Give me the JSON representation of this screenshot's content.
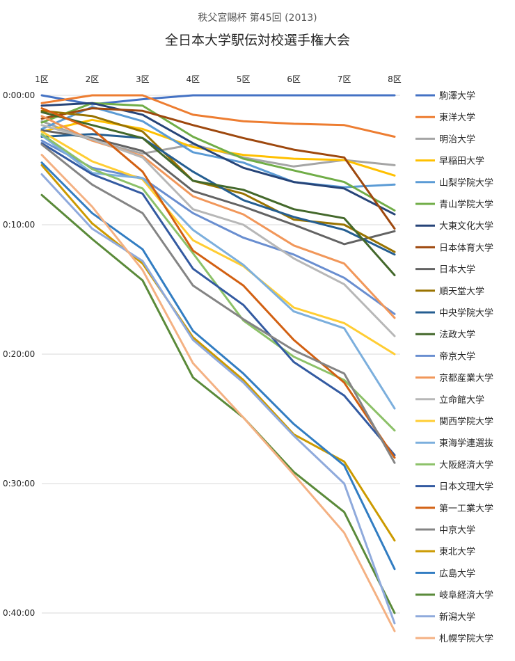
{
  "chart_data": {
    "type": "line",
    "subtitle": "秩父宮賜杯 第45回 (2013)",
    "title": "全日本大学駅伝対校選手権大会",
    "x": [
      "1区",
      "2区",
      "3区",
      "4区",
      "5区",
      "6区",
      "7区",
      "8区"
    ],
    "y_ticks": [
      "0:00:00",
      "0:10:00",
      "0:20:00",
      "0:30:00",
      "0:40:00"
    ],
    "ylim_minutes": [
      0,
      41.5
    ],
    "y_reversed": true,
    "grid": true,
    "legend_position": "right",
    "series": [
      {
        "name": "駒澤大学",
        "color": "#4472C4",
        "values": [
          0,
          0.7,
          0.3,
          0,
          0,
          0,
          0,
          0
        ]
      },
      {
        "name": "東洋大学",
        "color": "#ED7D31",
        "values": [
          0.6,
          0,
          0,
          1.5,
          2.0,
          2.2,
          2.3,
          3.2
        ]
      },
      {
        "name": "明治大学",
        "color": "#A5A5A5",
        "values": [
          2.0,
          3.5,
          4.5,
          3.8,
          4.8,
          5.5,
          5.0,
          5.4
        ]
      },
      {
        "name": "早稲田大学",
        "color": "#FFC000",
        "values": [
          2.8,
          1.9,
          2.6,
          4.0,
          4.6,
          4.9,
          5.0,
          6.2
        ]
      },
      {
        "name": "山梨学院大学",
        "color": "#5B9BD5",
        "values": [
          2.6,
          0.9,
          2.0,
          4.4,
          5.2,
          6.7,
          7.1,
          6.9
        ]
      },
      {
        "name": "青山学院大学",
        "color": "#70AD47",
        "values": [
          2.1,
          0.6,
          0.8,
          3.2,
          4.9,
          5.8,
          6.7,
          8.9
        ]
      },
      {
        "name": "大東文化大学",
        "color": "#264478",
        "values": [
          0.8,
          0.6,
          1.5,
          3.7,
          5.6,
          6.7,
          7.2,
          9.2
        ]
      },
      {
        "name": "日本体育大学",
        "color": "#9E480E",
        "values": [
          1.8,
          1.0,
          1.2,
          2.3,
          3.3,
          4.2,
          4.8,
          10.3
        ]
      },
      {
        "name": "日本大学",
        "color": "#636363",
        "values": [
          2.7,
          3.3,
          4.3,
          7.4,
          8.6,
          10.0,
          11.5,
          10.5
        ]
      },
      {
        "name": "順天堂大学",
        "color": "#997300",
        "values": [
          1.2,
          1.6,
          2.8,
          6.6,
          7.6,
          9.6,
          10.0,
          12.1
        ]
      },
      {
        "name": "中央学院大学",
        "color": "#255E91",
        "values": [
          3.2,
          3.0,
          3.3,
          5.9,
          8.1,
          9.4,
          10.4,
          12.3
        ]
      },
      {
        "name": "法政大学",
        "color": "#43682B",
        "values": [
          1.3,
          2.3,
          3.3,
          6.6,
          7.3,
          8.8,
          9.5,
          13.9
        ]
      },
      {
        "name": "帝京大学",
        "color": "#698ED0",
        "values": [
          3.5,
          5.6,
          6.4,
          9.1,
          11.0,
          12.3,
          14.1,
          16.9
        ]
      },
      {
        "name": "京都産業大学",
        "color": "#F1975A",
        "values": [
          1.6,
          3.5,
          4.7,
          7.8,
          9.2,
          11.6,
          13.0,
          17.2
        ]
      },
      {
        "name": "立命館大学",
        "color": "#B7B7B7",
        "values": [
          2.3,
          3.4,
          4.8,
          8.8,
          10.0,
          12.6,
          14.6,
          18.6
        ]
      },
      {
        "name": "関西学院大学",
        "color": "#FFCD33",
        "values": [
          2.8,
          5.1,
          6.5,
          11.2,
          13.2,
          16.4,
          17.6,
          20.0
        ]
      },
      {
        "name": "東海学連選抜",
        "color": "#7CAFDD",
        "values": [
          3.1,
          6.0,
          6.4,
          10.4,
          13.1,
          16.7,
          18.0,
          24.2
        ]
      },
      {
        "name": "大阪経済大学",
        "color": "#8CC168",
        "values": [
          3.0,
          5.7,
          7.2,
          12.2,
          17.4,
          20.2,
          22.0,
          25.9
        ]
      },
      {
        "name": "日本文理大学",
        "color": "#335AA1",
        "values": [
          3.7,
          6.1,
          7.6,
          13.4,
          16.2,
          20.6,
          23.2,
          27.8
        ]
      },
      {
        "name": "第一工業大学",
        "color": "#D26012",
        "values": [
          1.0,
          2.6,
          5.9,
          12.0,
          14.7,
          18.9,
          22.2,
          28.0
        ]
      },
      {
        "name": "中京大学",
        "color": "#848484",
        "values": [
          3.8,
          6.9,
          9.1,
          14.7,
          17.3,
          19.7,
          21.5,
          28.4
        ]
      },
      {
        "name": "東北大学",
        "color": "#CC9A00",
        "values": [
          5.4,
          9.9,
          13.0,
          18.7,
          22.0,
          26.2,
          28.3,
          34.4
        ]
      },
      {
        "name": "広島大学",
        "color": "#327DC2",
        "values": [
          5.2,
          9.1,
          11.9,
          18.2,
          21.5,
          25.4,
          28.6,
          36.6
        ]
      },
      {
        "name": "岐阜経済大学",
        "color": "#5A8A39",
        "values": [
          7.7,
          11.1,
          14.3,
          21.8,
          24.9,
          29.1,
          32.2,
          40.0
        ]
      },
      {
        "name": "新潟大学",
        "color": "#8FAADC",
        "values": [
          6.1,
          10.3,
          12.8,
          18.9,
          22.2,
          26.3,
          30.0,
          40.8
        ]
      },
      {
        "name": "札幌学院大学",
        "color": "#F4B183",
        "values": [
          4.6,
          8.6,
          13.5,
          20.7,
          24.9,
          29.3,
          33.8,
          41.4
        ]
      }
    ]
  }
}
